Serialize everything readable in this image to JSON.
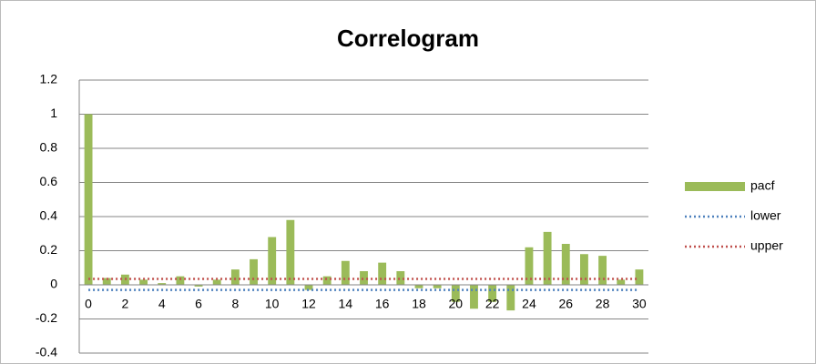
{
  "chart_data": {
    "type": "bar",
    "title": "Correlogram",
    "categories": [
      0,
      null,
      2,
      null,
      4,
      null,
      6,
      null,
      8,
      null,
      10,
      null,
      12,
      null,
      14,
      null,
      16,
      null,
      18,
      null,
      20,
      null,
      22,
      null,
      24,
      null,
      26,
      null,
      28,
      null,
      30
    ],
    "series": [
      {
        "name": "pacf",
        "type": "bar",
        "color": "#9bbb59",
        "values": [
          1.0,
          0.04,
          0.06,
          0.03,
          0.01,
          0.05,
          -0.01,
          0.03,
          0.09,
          0.15,
          0.28,
          0.38,
          -0.03,
          0.05,
          0.14,
          0.08,
          0.13,
          0.08,
          -0.02,
          -0.02,
          -0.1,
          -0.14,
          -0.1,
          -0.15,
          0.22,
          0.31,
          0.24,
          0.18,
          0.17,
          0.03,
          0.09
        ]
      },
      {
        "name": "lower",
        "type": "line",
        "color": "#4f81bd",
        "values": [
          -0.03,
          -0.03,
          -0.03,
          -0.03,
          -0.03,
          -0.03,
          -0.03,
          -0.03,
          -0.03,
          -0.03,
          -0.03,
          -0.03,
          -0.03,
          -0.03,
          -0.03,
          -0.03,
          -0.03,
          -0.03,
          -0.03,
          -0.03,
          -0.03,
          -0.03,
          -0.03,
          -0.03,
          -0.03,
          -0.03,
          -0.03,
          -0.03,
          -0.03,
          -0.03,
          -0.03
        ]
      },
      {
        "name": "upper",
        "type": "line",
        "color": "#c0504d",
        "values": [
          0.035,
          0.035,
          0.035,
          0.035,
          0.035,
          0.035,
          0.035,
          0.035,
          0.035,
          0.035,
          0.035,
          0.035,
          0.035,
          0.035,
          0.035,
          0.035,
          0.035,
          0.035,
          0.035,
          0.035,
          0.035,
          0.035,
          0.035,
          0.035,
          0.035,
          0.035,
          0.035,
          0.035,
          0.035,
          0.035,
          0.035
        ]
      }
    ],
    "ylim": [
      -0.4,
      1.2
    ],
    "yticks": [
      -0.4,
      -0.2,
      0,
      0.2,
      0.4,
      0.6,
      0.8,
      1,
      1.2
    ],
    "grid": true,
    "legend": "right"
  }
}
